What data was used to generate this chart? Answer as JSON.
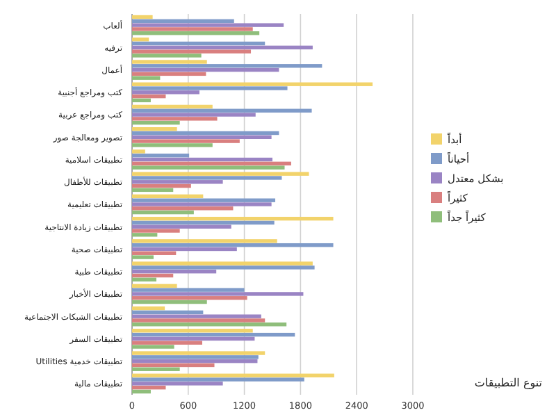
{
  "chart_data": {
    "type": "bar",
    "orientation": "horizontal",
    "title": "تنوع التطبيقات",
    "categories": [
      "ألعاب",
      "ترفيه",
      "أعمال",
      "كتب ومراجع أجنبية",
      "كتب ومراجع عربية",
      "تصوير ومعالجة صور",
      "تطبيقات اسلامية",
      "تطبيقات للأطفال",
      "تطبيقات تعليمية",
      "تطبيقات زيادة الانتاجية",
      "تطبيقات صحية",
      "تطبيقات طبية",
      "تطبيقات الأخبار",
      "تطبيقات الشبكات الاجتماعية",
      "تطبيقات السفر",
      "تطبيقات خدمية Utilities",
      "تطبيقات مالية"
    ],
    "series": [
      {
        "name": "أبداً",
        "color": "#f2d36b",
        "values": [
          220,
          180,
          800,
          2570,
          860,
          480,
          140,
          1890,
          760,
          2150,
          1550,
          1930,
          480,
          350,
          1290,
          1420,
          2160
        ]
      },
      {
        "name": "أحياناً",
        "color": "#7f9bc9",
        "values": [
          1090,
          1420,
          2030,
          1660,
          1920,
          1570,
          610,
          1600,
          1530,
          1520,
          2150,
          1950,
          1200,
          760,
          1740,
          1350,
          1840
        ]
      },
      {
        "name": "بشكل معتدل",
        "color": "#9a84c4",
        "values": [
          1620,
          1930,
          1570,
          720,
          1320,
          1490,
          1500,
          970,
          1490,
          1060,
          1120,
          900,
          1830,
          1380,
          1310,
          1340,
          970
        ]
      },
      {
        "name": "كثيراً",
        "color": "#d97f7f",
        "values": [
          1290,
          1270,
          790,
          360,
          910,
          1150,
          1700,
          630,
          1080,
          510,
          470,
          440,
          1230,
          1420,
          750,
          880,
          360
        ]
      },
      {
        "name": "كثيراً جداً",
        "color": "#8fbe7b",
        "values": [
          1360,
          740,
          300,
          200,
          510,
          860,
          1630,
          440,
          660,
          270,
          230,
          260,
          800,
          1650,
          450,
          510,
          200
        ]
      }
    ],
    "xlim": [
      0,
      3000
    ],
    "xticks": [
      0,
      600,
      1200,
      1800,
      2400,
      3000
    ],
    "grid": "x",
    "legend": "right"
  }
}
